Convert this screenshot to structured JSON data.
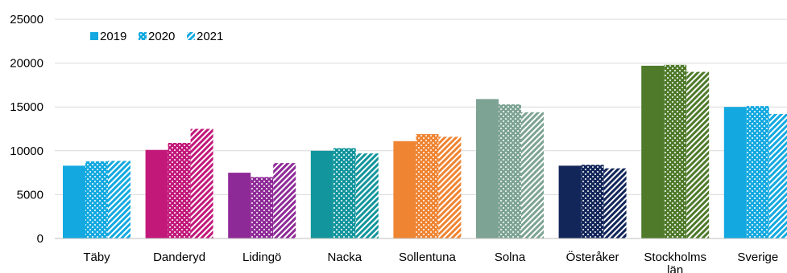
{
  "chart_data": {
    "type": "bar",
    "categories": [
      "Täby",
      "Danderyd",
      "Lidingö",
      "Nacka",
      "Sollentuna",
      "Solna",
      "Österåker",
      "Stockholms län",
      "Sverige"
    ],
    "category_lines": [
      [
        "Täby"
      ],
      [
        "Danderyd"
      ],
      [
        "Lidingö"
      ],
      [
        "Nacka"
      ],
      [
        "Sollentuna"
      ],
      [
        "Solna"
      ],
      [
        "Österåker"
      ],
      [
        "Stockholms",
        "län"
      ],
      [
        "Sverige"
      ]
    ],
    "series": [
      {
        "name": "2019",
        "values": [
          8300,
          10100,
          7500,
          10000,
          11100,
          15900,
          8300,
          19700,
          15000
        ]
      },
      {
        "name": "2020",
        "values": [
          8800,
          10900,
          7000,
          10300,
          11900,
          15300,
          8400,
          19800,
          15100
        ]
      },
      {
        "name": "2021",
        "values": [
          8850,
          12500,
          8600,
          9700,
          11600,
          14400,
          8000,
          19000,
          14200
        ]
      }
    ],
    "category_colors": [
      "#13a9e0",
      "#c2187a",
      "#8e2a97",
      "#12959d",
      "#ef8432",
      "#7da394",
      "#13265a",
      "#4e7a2a",
      "#13a9e0"
    ],
    "legend_color": "#13a9e0",
    "yticks": [
      0,
      5000,
      10000,
      15000,
      20000,
      25000
    ],
    "ylim": [
      0,
      25000
    ],
    "grid": true,
    "legend_position": "top-left",
    "title": "",
    "xlabel": "",
    "ylabel": ""
  }
}
